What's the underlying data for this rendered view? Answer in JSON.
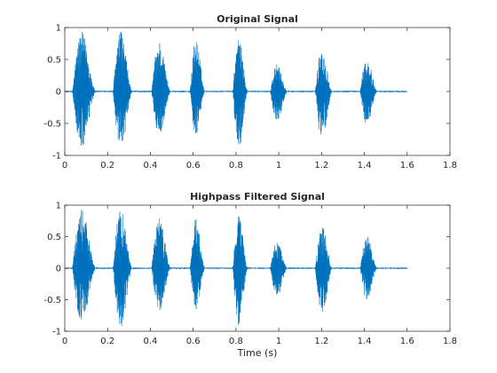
{
  "chart_data": [
    {
      "type": "line",
      "title": "Original Signal",
      "xlabel": "",
      "ylabel": "",
      "xlim": [
        0,
        1.8
      ],
      "ylim": [
        -1,
        1
      ],
      "xticks": [
        "0",
        "0.2",
        "0.4",
        "0.6",
        "0.8",
        "1",
        "1.2",
        "1.4",
        "1.6",
        "1.8"
      ],
      "yticks": [
        "-1",
        "-0.5",
        "0",
        "0.5",
        "1"
      ],
      "grid": false,
      "line_color": "#0072BD",
      "signal_end": 1.6,
      "bursts": [
        {
          "center": 0.09,
          "width": 0.11,
          "peak_pos": 0.93,
          "peak_neg": -0.9
        },
        {
          "center": 0.27,
          "width": 0.09,
          "peak_pos": 0.95,
          "peak_neg": -0.97
        },
        {
          "center": 0.45,
          "width": 0.09,
          "peak_pos": 0.8,
          "peak_neg": -0.7
        },
        {
          "center": 0.62,
          "width": 0.07,
          "peak_pos": 0.83,
          "peak_neg": -0.68
        },
        {
          "center": 0.82,
          "width": 0.07,
          "peak_pos": 0.85,
          "peak_neg": -0.92
        },
        {
          "center": 1.0,
          "width": 0.08,
          "peak_pos": 0.43,
          "peak_neg": -0.47
        },
        {
          "center": 1.21,
          "width": 0.08,
          "peak_pos": 0.68,
          "peak_neg": -0.74
        },
        {
          "center": 1.42,
          "width": 0.08,
          "peak_pos": 0.52,
          "peak_neg": -0.52
        }
      ]
    },
    {
      "type": "line",
      "title": "Highpass Filtered Signal",
      "xlabel": "Time (s)",
      "ylabel": "",
      "xlim": [
        0,
        1.8
      ],
      "ylim": [
        -1,
        1
      ],
      "xticks": [
        "0",
        "0.2",
        "0.4",
        "0.6",
        "0.8",
        "1",
        "1.2",
        "1.4",
        "1.6",
        "1.8"
      ],
      "yticks": [
        "-1",
        "-0.5",
        "0",
        "0.5",
        "1"
      ],
      "grid": false,
      "line_color": "#0072BD",
      "signal_end": 1.6,
      "bursts": [
        {
          "center": 0.09,
          "width": 0.11,
          "peak_pos": 0.93,
          "peak_neg": -0.88
        },
        {
          "center": 0.27,
          "width": 0.09,
          "peak_pos": 0.94,
          "peak_neg": -0.96
        },
        {
          "center": 0.45,
          "width": 0.09,
          "peak_pos": 0.79,
          "peak_neg": -0.69
        },
        {
          "center": 0.62,
          "width": 0.07,
          "peak_pos": 0.82,
          "peak_neg": -0.67
        },
        {
          "center": 0.82,
          "width": 0.07,
          "peak_pos": 0.84,
          "peak_neg": -0.91
        },
        {
          "center": 1.0,
          "width": 0.08,
          "peak_pos": 0.42,
          "peak_neg": -0.46
        },
        {
          "center": 1.21,
          "width": 0.08,
          "peak_pos": 0.67,
          "peak_neg": -0.73
        },
        {
          "center": 1.42,
          "width": 0.08,
          "peak_pos": 0.51,
          "peak_neg": -0.51
        }
      ]
    }
  ]
}
